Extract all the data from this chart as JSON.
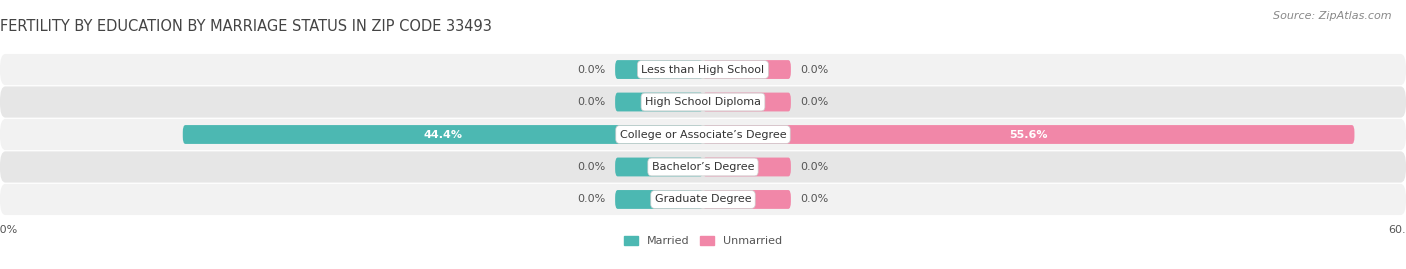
{
  "title": "FERTILITY BY EDUCATION BY MARRIAGE STATUS IN ZIP CODE 33493",
  "source": "Source: ZipAtlas.com",
  "categories": [
    "Less than High School",
    "High School Diploma",
    "College or Associate’s Degree",
    "Bachelor’s Degree",
    "Graduate Degree"
  ],
  "married_values": [
    0.0,
    0.0,
    44.4,
    0.0,
    0.0
  ],
  "unmarried_values": [
    0.0,
    0.0,
    55.6,
    0.0,
    0.0
  ],
  "married_color": "#4cb8b2",
  "unmarried_color": "#f187a8",
  "row_bg_light": "#f2f2f2",
  "row_bg_dark": "#e6e6e6",
  "xlim": 60.0,
  "stub_size": 7.5,
  "title_fontsize": 10.5,
  "source_fontsize": 8,
  "label_fontsize": 8,
  "value_fontsize": 8,
  "bar_height": 0.58,
  "fig_bg_color": "#ffffff",
  "legend_labels": [
    "Married",
    "Unmarried"
  ]
}
